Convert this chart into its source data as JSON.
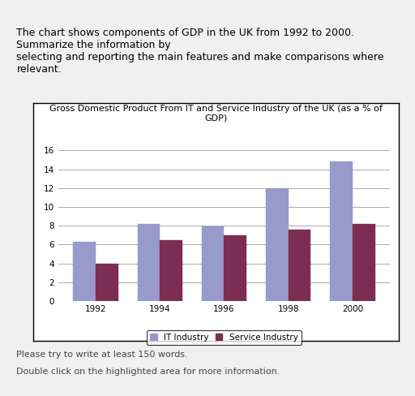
{
  "header_text": "The chart shows components of GDP in the UK from 1992 to 2000. Summarize the information by\nselecting and reporting the main features and make comparisons where relevant.",
  "footer_text1": "Please try to write at least 150 words.",
  "footer_text2": "Double click on the highlighted area for more information.",
  "title": "Gross Domestic Product From IT and Service Industry of the UK (as a % of\nGDP)",
  "years": [
    "1992",
    "1994",
    "1996",
    "1998",
    "2000"
  ],
  "it_industry": [
    6.3,
    8.2,
    7.9,
    12.0,
    14.8
  ],
  "service_industry": [
    4.0,
    6.5,
    7.0,
    7.6,
    8.2
  ],
  "it_color": "#9999cc",
  "service_color": "#7b2d52",
  "ylim": [
    0,
    16
  ],
  "yticks": [
    0,
    2,
    4,
    6,
    8,
    10,
    12,
    14,
    16
  ],
  "legend_it": "IT Industry",
  "legend_service": "Service Industry",
  "bar_width": 0.35,
  "title_fontsize": 8,
  "tick_fontsize": 7.5,
  "legend_fontsize": 7.5,
  "header_fontsize": 9,
  "footer_fontsize": 8,
  "background_color": "#f0f0f0",
  "chart_bg": "#ffffff",
  "grid_color": "#aaaaaa"
}
